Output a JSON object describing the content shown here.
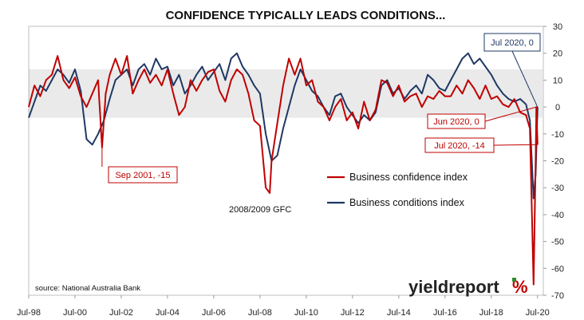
{
  "chart_data": {
    "type": "line",
    "title": "CONFIDENCE TYPICALLY LEADS CONDITIONS...",
    "ylim": [
      -70,
      30
    ],
    "yticks": [
      30,
      20,
      10,
      0,
      -10,
      -20,
      -30,
      -40,
      -50,
      -60,
      -70
    ],
    "x_tick_labels": [
      "Jul-98",
      "Jul-00",
      "Jul-02",
      "Jul-04",
      "Jul-06",
      "Jul-08",
      "Jul-10",
      "Jul-12",
      "Jul-14",
      "Jul-16",
      "Jul-18",
      "Jul-20"
    ],
    "x_tick_dates": [
      1998.5,
      2000.5,
      2002.5,
      2004.5,
      2006.5,
      2008.5,
      2010.5,
      2012.5,
      2014.5,
      2016.5,
      2018.5,
      2020.5
    ],
    "xlim": [
      1998.5,
      2020.75
    ],
    "band": [
      -4,
      14
    ],
    "legend_position": "center-right",
    "series": [
      {
        "name": "Business confidence index",
        "color": "#c00000",
        "points": [
          [
            1998.5,
            0
          ],
          [
            1998.75,
            8
          ],
          [
            1999.0,
            4
          ],
          [
            1999.25,
            10
          ],
          [
            1999.5,
            12
          ],
          [
            1999.75,
            19
          ],
          [
            2000.0,
            10
          ],
          [
            2000.25,
            7
          ],
          [
            2000.5,
            11
          ],
          [
            2000.75,
            4
          ],
          [
            2001.0,
            0
          ],
          [
            2001.25,
            5
          ],
          [
            2001.5,
            10
          ],
          [
            2001.67,
            -15
          ],
          [
            2001.83,
            5
          ],
          [
            2002.0,
            12
          ],
          [
            2002.25,
            18
          ],
          [
            2002.5,
            12
          ],
          [
            2002.75,
            19
          ],
          [
            2003.0,
            5
          ],
          [
            2003.25,
            10
          ],
          [
            2003.5,
            14
          ],
          [
            2003.75,
            9
          ],
          [
            2004.0,
            12
          ],
          [
            2004.25,
            8
          ],
          [
            2004.5,
            14
          ],
          [
            2004.75,
            5
          ],
          [
            2005.0,
            -3
          ],
          [
            2005.25,
            0
          ],
          [
            2005.5,
            10
          ],
          [
            2005.75,
            6
          ],
          [
            2006.0,
            10
          ],
          [
            2006.25,
            13
          ],
          [
            2006.5,
            14
          ],
          [
            2006.75,
            6
          ],
          [
            2007.0,
            2
          ],
          [
            2007.25,
            10
          ],
          [
            2007.5,
            14
          ],
          [
            2007.75,
            12
          ],
          [
            2008.0,
            5
          ],
          [
            2008.25,
            -5
          ],
          [
            2008.5,
            -7
          ],
          [
            2008.75,
            -30
          ],
          [
            2008.92,
            -32
          ],
          [
            2009.0,
            -20
          ],
          [
            2009.25,
            -6
          ],
          [
            2009.5,
            8
          ],
          [
            2009.75,
            18
          ],
          [
            2010.0,
            12
          ],
          [
            2010.25,
            18
          ],
          [
            2010.5,
            8
          ],
          [
            2010.75,
            10
          ],
          [
            2011.0,
            2
          ],
          [
            2011.25,
            0
          ],
          [
            2011.5,
            -5
          ],
          [
            2011.75,
            0
          ],
          [
            2012.0,
            3
          ],
          [
            2012.25,
            -5
          ],
          [
            2012.5,
            -2
          ],
          [
            2012.75,
            -8
          ],
          [
            2013.0,
            2
          ],
          [
            2013.25,
            -5
          ],
          [
            2013.5,
            -1
          ],
          [
            2013.75,
            10
          ],
          [
            2014.0,
            9
          ],
          [
            2014.25,
            4
          ],
          [
            2014.5,
            8
          ],
          [
            2014.75,
            2
          ],
          [
            2015.0,
            4
          ],
          [
            2015.25,
            5
          ],
          [
            2015.5,
            0
          ],
          [
            2015.75,
            4
          ],
          [
            2016.0,
            3
          ],
          [
            2016.25,
            6
          ],
          [
            2016.5,
            4
          ],
          [
            2016.75,
            4
          ],
          [
            2017.0,
            8
          ],
          [
            2017.25,
            5
          ],
          [
            2017.5,
            10
          ],
          [
            2017.75,
            7
          ],
          [
            2018.0,
            3
          ],
          [
            2018.25,
            8
          ],
          [
            2018.5,
            3
          ],
          [
            2018.75,
            4
          ],
          [
            2019.0,
            1
          ],
          [
            2019.25,
            0
          ],
          [
            2019.5,
            3
          ],
          [
            2019.75,
            -2
          ],
          [
            2020.0,
            -3
          ],
          [
            2020.17,
            -8
          ],
          [
            2020.33,
            -66
          ],
          [
            2020.42,
            -20
          ],
          [
            2020.45,
            0
          ],
          [
            2020.5,
            -14
          ]
        ]
      },
      {
        "name": "Business conditions index",
        "color": "#1f3864",
        "points": [
          [
            1998.5,
            -4
          ],
          [
            1998.75,
            2
          ],
          [
            1999.0,
            8
          ],
          [
            1999.25,
            6
          ],
          [
            1999.5,
            10
          ],
          [
            1999.75,
            14
          ],
          [
            2000.0,
            12
          ],
          [
            2000.25,
            9
          ],
          [
            2000.5,
            14
          ],
          [
            2000.75,
            6
          ],
          [
            2001.0,
            -12
          ],
          [
            2001.25,
            -14
          ],
          [
            2001.5,
            -10
          ],
          [
            2001.75,
            -5
          ],
          [
            2002.0,
            3
          ],
          [
            2002.25,
            10
          ],
          [
            2002.5,
            12
          ],
          [
            2002.75,
            14
          ],
          [
            2003.0,
            8
          ],
          [
            2003.25,
            14
          ],
          [
            2003.5,
            16
          ],
          [
            2003.75,
            12
          ],
          [
            2004.0,
            18
          ],
          [
            2004.25,
            14
          ],
          [
            2004.5,
            15
          ],
          [
            2004.75,
            8
          ],
          [
            2005.0,
            12
          ],
          [
            2005.25,
            5
          ],
          [
            2005.5,
            8
          ],
          [
            2005.75,
            12
          ],
          [
            2006.0,
            15
          ],
          [
            2006.25,
            10
          ],
          [
            2006.5,
            13
          ],
          [
            2006.75,
            16
          ],
          [
            2007.0,
            10
          ],
          [
            2007.25,
            18
          ],
          [
            2007.5,
            20
          ],
          [
            2007.75,
            15
          ],
          [
            2008.0,
            12
          ],
          [
            2008.25,
            8
          ],
          [
            2008.5,
            5
          ],
          [
            2008.75,
            -10
          ],
          [
            2009.0,
            -20
          ],
          [
            2009.25,
            -18
          ],
          [
            2009.5,
            -8
          ],
          [
            2009.75,
            0
          ],
          [
            2010.0,
            8
          ],
          [
            2010.25,
            14
          ],
          [
            2010.5,
            10
          ],
          [
            2010.75,
            6
          ],
          [
            2011.0,
            4
          ],
          [
            2011.25,
            0
          ],
          [
            2011.5,
            -3
          ],
          [
            2011.75,
            4
          ],
          [
            2012.0,
            5
          ],
          [
            2012.25,
            0
          ],
          [
            2012.5,
            -3
          ],
          [
            2012.75,
            -6
          ],
          [
            2013.0,
            -3
          ],
          [
            2013.25,
            -5
          ],
          [
            2013.5,
            -2
          ],
          [
            2013.75,
            8
          ],
          [
            2014.0,
            10
          ],
          [
            2014.25,
            5
          ],
          [
            2014.5,
            7
          ],
          [
            2014.75,
            3
          ],
          [
            2015.0,
            6
          ],
          [
            2015.25,
            8
          ],
          [
            2015.5,
            5
          ],
          [
            2015.75,
            12
          ],
          [
            2016.0,
            10
          ],
          [
            2016.25,
            7
          ],
          [
            2016.5,
            6
          ],
          [
            2016.75,
            10
          ],
          [
            2017.0,
            14
          ],
          [
            2017.25,
            18
          ],
          [
            2017.5,
            20
          ],
          [
            2017.75,
            16
          ],
          [
            2018.0,
            18
          ],
          [
            2018.25,
            15
          ],
          [
            2018.5,
            12
          ],
          [
            2018.75,
            8
          ],
          [
            2019.0,
            5
          ],
          [
            2019.25,
            3
          ],
          [
            2019.5,
            2
          ],
          [
            2019.75,
            3
          ],
          [
            2020.0,
            1
          ],
          [
            2020.17,
            -5
          ],
          [
            2020.33,
            -34
          ],
          [
            2020.42,
            -25
          ],
          [
            2020.5,
            0
          ]
        ]
      }
    ],
    "annotations": [
      {
        "text": "Sep 2001, -15",
        "series": "Business confidence index",
        "x": 2001.67,
        "y": -15
      },
      {
        "text": "Jun 2020, 0",
        "series": "Business confidence index",
        "x": 2020.45,
        "y": 0
      },
      {
        "text": "Jul 2020, -14",
        "series": "Business confidence index",
        "x": 2020.5,
        "y": -14
      },
      {
        "text": "Jul 2020, 0",
        "series": "Business conditions index",
        "x": 2020.5,
        "y": 0
      }
    ],
    "text_notes": {
      "gfc": "2008/2009 GFC",
      "source": "source: National Australia Bank"
    }
  },
  "brand": {
    "name": "yieldreport",
    "symbol": "%"
  }
}
